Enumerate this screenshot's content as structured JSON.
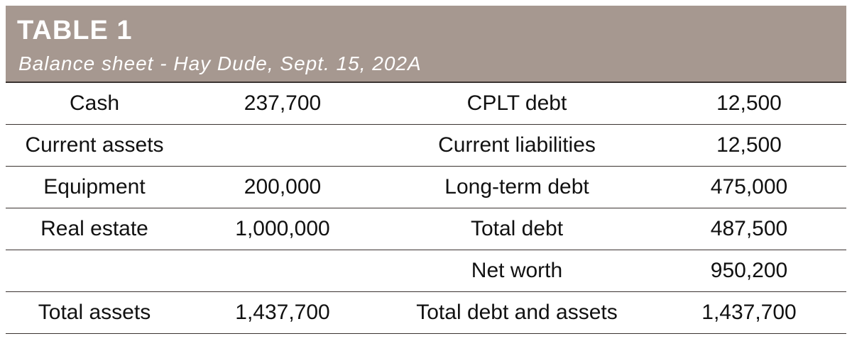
{
  "header": {
    "title": "TABLE 1",
    "subtitle": "Balance sheet - Hay Dude, Sept. 15, 202A"
  },
  "table": {
    "rows": [
      [
        "Cash",
        "237,700",
        "CPLT debt",
        "12,500"
      ],
      [
        "Current assets",
        null,
        "Current liabilities",
        "12,500"
      ],
      [
        "Equipment",
        "200,000",
        "Long-term debt",
        "475,000"
      ],
      [
        "Real estate",
        "1,000,000",
        "Total debt",
        "487,500"
      ],
      [
        null,
        null,
        "Net worth",
        "950,200"
      ],
      [
        "Total assets",
        "1,437,700",
        "Total debt and assets",
        "1,437,700"
      ]
    ]
  }
}
